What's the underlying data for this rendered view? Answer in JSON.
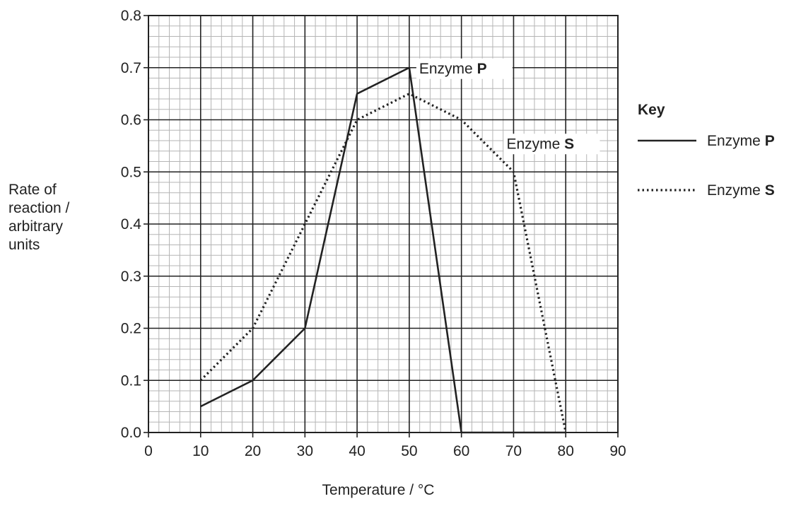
{
  "chart_data": {
    "type": "line",
    "title": "",
    "xlabel": "Temperature / °C",
    "ylabel_lines": [
      "Rate of",
      "reaction /",
      "arbitrary",
      "units"
    ],
    "xlim": [
      0,
      90
    ],
    "ylim": [
      0,
      0.8
    ],
    "x_ticks": [
      "0",
      "10",
      "20",
      "30",
      "40",
      "50",
      "60",
      "70",
      "80",
      "90"
    ],
    "y_ticks": [
      "0.0",
      "0.1",
      "0.2",
      "0.3",
      "0.4",
      "0.5",
      "0.6",
      "0.7",
      "0.8"
    ],
    "grid": "on (major every 10 / 0.1, minor every 2 / 0.02)",
    "legend": {
      "title": "Key",
      "placement": "right",
      "entries": [
        {
          "prefix": "Enzyme ",
          "letter": "P",
          "style": "solid"
        },
        {
          "prefix": "Enzyme ",
          "letter": "S",
          "style": "dotted"
        }
      ]
    },
    "series": [
      {
        "name_prefix": "Enzyme ",
        "name_letter": "P",
        "style": "solid",
        "x": [
          10,
          20,
          30,
          40,
          50,
          60,
          70,
          80
        ],
        "y": [
          0.05,
          0.1,
          0.2,
          0.65,
          0.7,
          0.0,
          0.0,
          0.0
        ]
      },
      {
        "name_prefix": "Enzyme ",
        "name_letter": "S",
        "style": "dotted",
        "x": [
          10,
          20,
          30,
          40,
          50,
          60,
          70,
          80
        ],
        "y": [
          0.1,
          0.2,
          0.4,
          0.6,
          0.65,
          0.6,
          0.5,
          0.0
        ]
      }
    ],
    "annotations": [
      {
        "prefix": "Enzyme ",
        "letter": "P",
        "x": 50,
        "y": 0.7
      },
      {
        "prefix": "Enzyme ",
        "letter": "S",
        "x": 70,
        "y": 0.5
      }
    ],
    "colors": {
      "axis": "#222222",
      "major_grid": "#222222",
      "minor_grid": "#b5b5b5",
      "line": "#222222"
    }
  }
}
